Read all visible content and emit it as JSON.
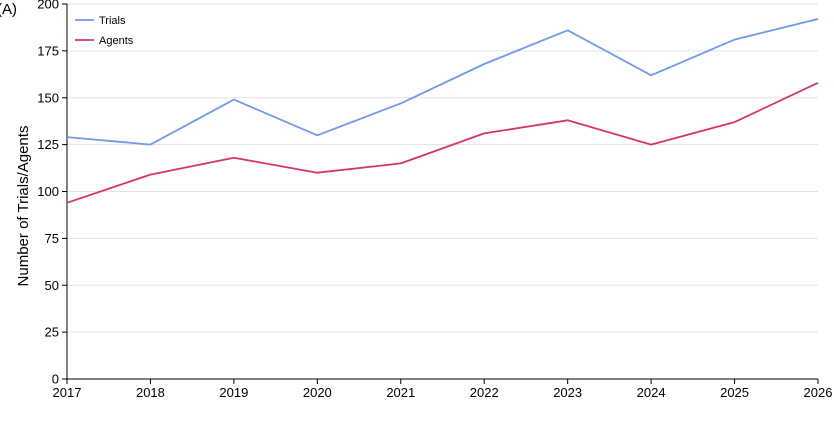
{
  "panel_label": "(A)",
  "chart_data": {
    "type": "line",
    "title": "",
    "xlabel": "",
    "ylabel": "Number of Trials/Agents",
    "x": [
      2017,
      2018,
      2019,
      2020,
      2021,
      2022,
      2023,
      2024,
      2025,
      2026
    ],
    "xlim": [
      2017,
      2026
    ],
    "ylim": [
      0,
      200
    ],
    "yticks": [
      0,
      25,
      50,
      75,
      100,
      125,
      150,
      175,
      200
    ],
    "grid": "horizontal",
    "legend_position": "top-left",
    "series": [
      {
        "name": "Trials",
        "color": "#6f9be8",
        "values": [
          129,
          125,
          149,
          130,
          147,
          168,
          186,
          162,
          181,
          192
        ]
      },
      {
        "name": "Agents",
        "color": "#d6336c",
        "values": [
          94,
          109,
          118,
          110,
          115,
          131,
          138,
          125,
          137,
          158
        ]
      }
    ]
  }
}
